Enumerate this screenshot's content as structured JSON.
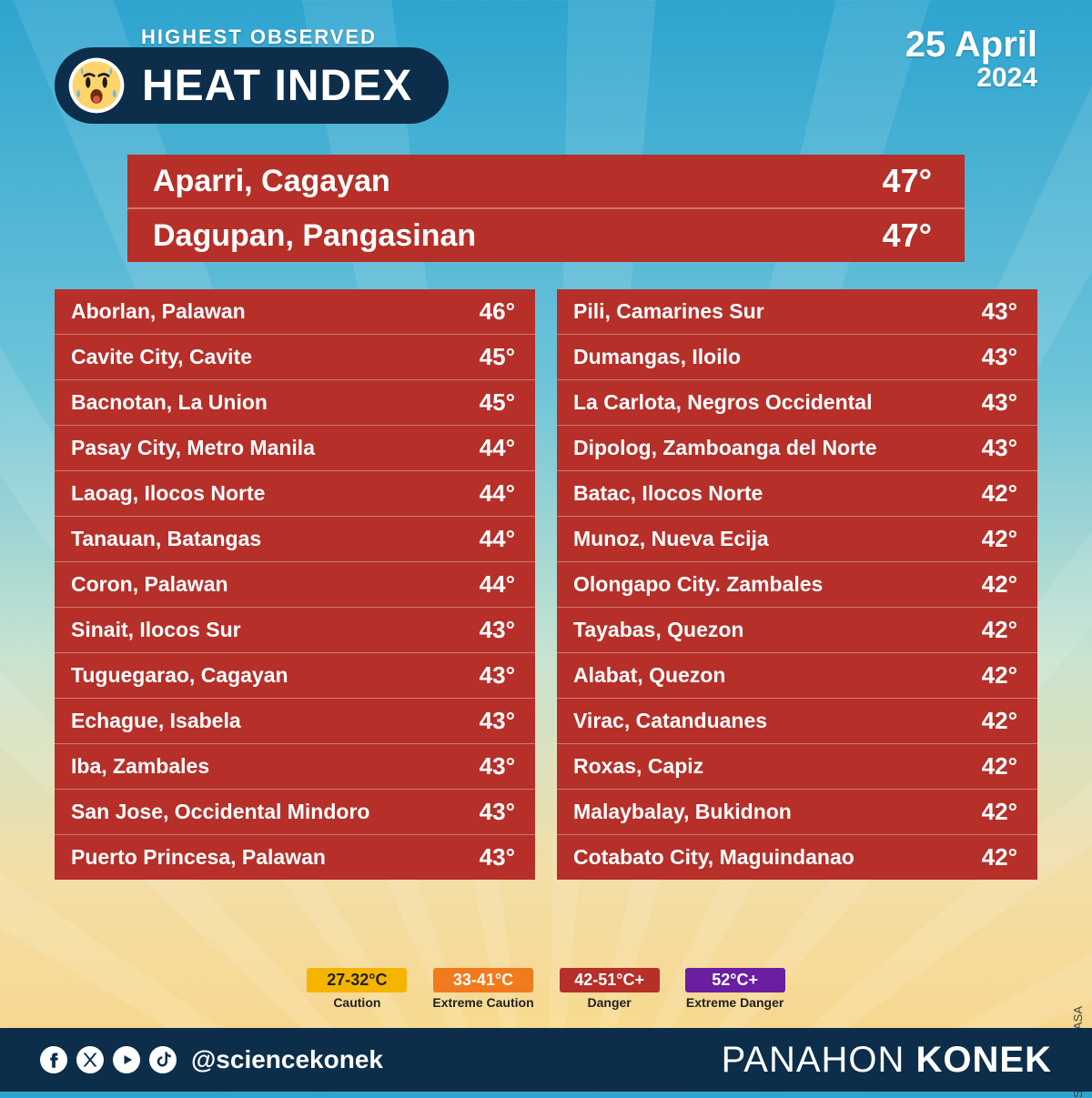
{
  "header": {
    "subtitle": "HIGHEST OBSERVED",
    "title": "HEAT INDEX",
    "date_line1": "25 April",
    "date_line2": "2024"
  },
  "highlights": [
    {
      "place": "Aparri, Cagayan",
      "value": "47°"
    },
    {
      "place": "Dagupan, Pangasinan",
      "value": "47°"
    }
  ],
  "left": [
    {
      "place": "Aborlan, Palawan",
      "value": "46°"
    },
    {
      "place": "Cavite City, Cavite",
      "value": "45°"
    },
    {
      "place": "Bacnotan, La Union",
      "value": "45°"
    },
    {
      "place": "Pasay City, Metro Manila",
      "value": "44°"
    },
    {
      "place": "Laoag, Ilocos Norte",
      "value": "44°"
    },
    {
      "place": "Tanauan, Batangas",
      "value": "44°"
    },
    {
      "place": "Coron, Palawan",
      "value": "44°"
    },
    {
      "place": "Sinait, Ilocos Sur",
      "value": "43°"
    },
    {
      "place": "Tuguegarao, Cagayan",
      "value": "43°"
    },
    {
      "place": "Echague, Isabela",
      "value": "43°"
    },
    {
      "place": "Iba, Zambales",
      "value": "43°"
    },
    {
      "place": "San Jose, Occidental Mindoro",
      "value": "43°"
    },
    {
      "place": "Puerto Princesa, Palawan",
      "value": "43°"
    }
  ],
  "right": [
    {
      "place": "Pili, Camarines Sur",
      "value": "43°"
    },
    {
      "place": "Dumangas, Iloilo",
      "value": "43°"
    },
    {
      "place": "La Carlota, Negros Occidental",
      "value": "43°"
    },
    {
      "place": "Dipolog, Zamboanga del Norte",
      "value": "43°"
    },
    {
      "place": "Batac, Ilocos Norte",
      "value": "42°"
    },
    {
      "place": "Munoz, Nueva Ecija",
      "value": "42°"
    },
    {
      "place": "Olongapo City. Zambales",
      "value": "42°"
    },
    {
      "place": "Tayabas, Quezon",
      "value": "42°"
    },
    {
      "place": "Alabat, Quezon",
      "value": "42°"
    },
    {
      "place": "Virac, Catanduanes",
      "value": "42°"
    },
    {
      "place": "Roxas, Capiz",
      "value": "42°"
    },
    {
      "place": "Malaybalay, Bukidnon",
      "value": "42°"
    },
    {
      "place": "Cotabato City, Maguindanao",
      "value": "42°"
    }
  ],
  "legend": [
    {
      "range": "27-32°C",
      "label": "Caution",
      "color": "#f5b400",
      "dark_text": true
    },
    {
      "range": "33-41°C",
      "label": "Extreme Caution",
      "color": "#f07a1d",
      "dark_text": false
    },
    {
      "range": "42-51°C+",
      "label": "Danger",
      "color": "#b62f29",
      "dark_text": false
    },
    {
      "range": "52°C+",
      "label": "Extreme Danger",
      "color": "#6a1ea0",
      "dark_text": false
    }
  ],
  "colors": {
    "danger_bg": "#b62f29",
    "header_pill": "#0c2e4a",
    "footer_bg": "#0c2e4a"
  },
  "footer": {
    "handle": "@sciencekonek",
    "brand_light": "PANAHON ",
    "brand_bold": "KONEK"
  },
  "source": "Source: PAGASA"
}
